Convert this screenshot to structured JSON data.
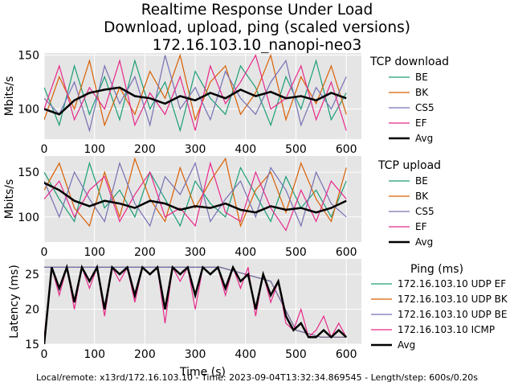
{
  "title_lines": [
    "Realtime Response Under Load",
    "Download, upload, ping (scaled versions)",
    "172.16.103.10_nanopi-neo3"
  ],
  "footer": "Local/remote: x13rd/172.16.103.10 - Time: 2023-09-04T13:32:34.869545 - Length/step: 600s/0.20s",
  "colors": {
    "BE": "#1b9e77",
    "BK": "#d95f02",
    "CS5": "#7570b3",
    "EF": "#e7298a",
    "Avg": "#000000",
    "plot_bg": "#e5e5e5"
  },
  "chart_data": [
    {
      "type": "line",
      "xlabel": "",
      "ylabel": "Mbits/s",
      "xlim": [
        0,
        630
      ],
      "ylim": [
        72,
        152
      ],
      "xticks": [
        0,
        100,
        200,
        300,
        400,
        500,
        600
      ],
      "yticks": [
        100,
        150
      ],
      "legend_title": "TCP download",
      "legend_placement": "outside-right",
      "series": [
        {
          "name": "BE",
          "color": "#1b9e77",
          "x": [
            0,
            30,
            60,
            90,
            120,
            150,
            180,
            210,
            240,
            270,
            300,
            330,
            360,
            390,
            420,
            450,
            480,
            510,
            540,
            570,
            600
          ],
          "y": [
            120,
            85,
            140,
            95,
            130,
            90,
            145,
            100,
            125,
            80,
            135,
            110,
            95,
            140,
            120,
            85,
            130,
            100,
            145,
            90,
            115
          ]
        },
        {
          "name": "BK",
          "color": "#d95f02",
          "x": [
            0,
            30,
            60,
            90,
            120,
            150,
            180,
            210,
            240,
            270,
            300,
            330,
            360,
            390,
            420,
            450,
            480,
            510,
            540,
            570,
            600
          ],
          "y": [
            90,
            130,
            100,
            145,
            85,
            120,
            95,
            135,
            110,
            150,
            90,
            125,
            140,
            95,
            115,
            150,
            90,
            130,
            105,
            140,
            95
          ]
        },
        {
          "name": "CS5",
          "color": "#7570b3",
          "x": [
            0,
            30,
            60,
            90,
            120,
            150,
            180,
            210,
            240,
            270,
            300,
            330,
            360,
            390,
            420,
            450,
            480,
            510,
            540,
            570,
            600
          ],
          "y": [
            110,
            95,
            125,
            80,
            140,
            105,
            130,
            85,
            150,
            100,
            120,
            90,
            135,
            110,
            95,
            125,
            145,
            85,
            120,
            100,
            130
          ]
        },
        {
          "name": "EF",
          "color": "#e7298a",
          "x": [
            0,
            30,
            60,
            90,
            120,
            150,
            180,
            210,
            240,
            270,
            300,
            330,
            360,
            390,
            420,
            450,
            480,
            510,
            540,
            570,
            600
          ],
          "y": [
            100,
            140,
            90,
            120,
            100,
            145,
            85,
            115,
            95,
            130,
            80,
            140,
            105,
            125,
            150,
            100,
            110,
            140,
            90,
            125,
            80
          ]
        },
        {
          "name": "Avg",
          "color": "#000000",
          "x": [
            0,
            30,
            60,
            90,
            120,
            150,
            180,
            210,
            240,
            270,
            300,
            330,
            360,
            390,
            420,
            450,
            480,
            510,
            540,
            570,
            600
          ],
          "y": [
            100,
            95,
            108,
            115,
            118,
            120,
            112,
            110,
            105,
            112,
            108,
            115,
            110,
            118,
            112,
            116,
            110,
            112,
            108,
            115,
            110
          ]
        }
      ]
    },
    {
      "type": "line",
      "xlabel": "",
      "ylabel": "Mbits/s",
      "xlim": [
        0,
        630
      ],
      "ylim": [
        72,
        168
      ],
      "xticks": [
        0,
        100,
        200,
        300,
        400,
        500,
        600
      ],
      "yticks": [
        100,
        150
      ],
      "legend_title": "TCP upload",
      "legend_placement": "outside-right",
      "series": [
        {
          "name": "BE",
          "color": "#1b9e77",
          "x": [
            0,
            30,
            60,
            90,
            120,
            150,
            180,
            210,
            240,
            270,
            300,
            330,
            360,
            390,
            420,
            450,
            480,
            510,
            540,
            570,
            600
          ],
          "y": [
            150,
            120,
            95,
            160,
            110,
            130,
            100,
            150,
            120,
            90,
            140,
            115,
            100,
            155,
            125,
            95,
            145,
            110,
            130,
            100,
            140
          ]
        },
        {
          "name": "BK",
          "color": "#d95f02",
          "x": [
            0,
            30,
            60,
            90,
            120,
            150,
            180,
            210,
            240,
            270,
            300,
            330,
            360,
            390,
            420,
            450,
            480,
            510,
            540,
            570,
            600
          ],
          "y": [
            130,
            160,
            110,
            90,
            150,
            100,
            165,
            120,
            95,
            155,
            110,
            140,
            165,
            90,
            130,
            150,
            105,
            160,
            120,
            95,
            155
          ]
        },
        {
          "name": "CS5",
          "color": "#7570b3",
          "x": [
            0,
            30,
            60,
            90,
            120,
            150,
            180,
            210,
            240,
            270,
            300,
            330,
            360,
            390,
            420,
            450,
            480,
            510,
            540,
            570,
            600
          ],
          "y": [
            140,
            100,
            150,
            120,
            95,
            160,
            115,
            90,
            145,
            125,
            160,
            95,
            120,
            140,
            100,
            155,
            130,
            90,
            150,
            115,
            100
          ]
        },
        {
          "name": "EF",
          "color": "#e7298a",
          "x": [
            0,
            30,
            60,
            90,
            120,
            150,
            180,
            210,
            240,
            270,
            300,
            330,
            360,
            390,
            420,
            450,
            480,
            510,
            540,
            570,
            600
          ],
          "y": [
            120,
            140,
            100,
            130,
            145,
            95,
            125,
            150,
            100,
            110,
            90,
            160,
            105,
            95,
            150,
            110,
            85,
            130,
            95,
            140,
            120
          ]
        },
        {
          "name": "Avg",
          "color": "#000000",
          "x": [
            0,
            30,
            60,
            90,
            120,
            150,
            180,
            210,
            240,
            270,
            300,
            330,
            360,
            390,
            420,
            450,
            480,
            510,
            540,
            570,
            600
          ],
          "y": [
            138,
            130,
            118,
            112,
            118,
            115,
            110,
            118,
            115,
            108,
            112,
            110,
            115,
            108,
            105,
            112,
            108,
            110,
            105,
            110,
            118
          ]
        }
      ]
    },
    {
      "type": "line",
      "xlabel": "Time (s)",
      "ylabel": "Latency (ms)",
      "xlim": [
        0,
        630
      ],
      "ylim": [
        15,
        27.2
      ],
      "xticks": [
        0,
        100,
        200,
        300,
        400,
        500,
        600
      ],
      "yticks": [
        15,
        20,
        25
      ],
      "legend_title": "Ping (ms)",
      "legend_placement": "outside-right",
      "series": [
        {
          "name": "172.16.103.10 UDP EF",
          "color": "#1b9e77",
          "x": [
            0,
            50,
            100,
            150,
            200,
            250,
            300,
            350,
            400,
            450,
            500,
            550,
            600
          ],
          "y": [
            26,
            26,
            26,
            26,
            26,
            26,
            26,
            26,
            25,
            24,
            17,
            16,
            16
          ]
        },
        {
          "name": "172.16.103.10 UDP BK",
          "color": "#d95f02",
          "x": [
            0,
            50,
            100,
            150,
            200,
            250,
            300,
            350,
            400,
            450,
            500,
            550,
            600
          ],
          "y": [
            26,
            26,
            26,
            26,
            26,
            26,
            26,
            26,
            25,
            24,
            17,
            16,
            16
          ]
        },
        {
          "name": "172.16.103.10 UDP BE",
          "color": "#7570b3",
          "x": [
            0,
            50,
            100,
            150,
            200,
            250,
            300,
            350,
            400,
            450,
            500,
            550,
            600
          ],
          "y": [
            26,
            26,
            26,
            26,
            26,
            26,
            26,
            26,
            25,
            24,
            17,
            16,
            16
          ]
        },
        {
          "name": "172.16.103.10 ICMP",
          "color": "#e7298a",
          "x": [
            0,
            15,
            30,
            45,
            60,
            75,
            90,
            105,
            120,
            135,
            150,
            165,
            180,
            195,
            210,
            225,
            240,
            255,
            270,
            285,
            300,
            315,
            330,
            345,
            360,
            375,
            390,
            405,
            420,
            435,
            450,
            465,
            480,
            495,
            510,
            525,
            540,
            555,
            570,
            585,
            600
          ],
          "y": [
            16,
            26,
            22,
            26,
            20,
            26,
            23,
            26,
            19,
            26,
            24,
            26,
            21,
            26,
            25,
            26,
            18,
            26,
            24,
            26,
            20,
            26,
            25,
            26,
            22,
            26,
            23,
            26,
            19,
            25,
            21,
            24,
            18,
            17,
            20,
            16,
            17,
            19,
            16,
            18,
            16
          ]
        },
        {
          "name": "Avg",
          "color": "#000000",
          "x": [
            0,
            15,
            30,
            45,
            60,
            75,
            90,
            105,
            120,
            135,
            150,
            165,
            180,
            195,
            210,
            225,
            240,
            255,
            270,
            285,
            300,
            315,
            330,
            345,
            360,
            375,
            390,
            405,
            420,
            435,
            450,
            465,
            480,
            495,
            510,
            525,
            540,
            555,
            570,
            585,
            600
          ],
          "y": [
            15,
            26,
            23,
            26,
            21,
            26,
            24,
            26,
            20,
            26,
            25,
            26,
            22,
            26,
            25,
            26,
            20,
            26,
            25,
            26,
            22,
            26,
            25,
            26,
            23,
            26,
            24,
            25,
            20,
            25,
            22,
            24,
            19,
            17,
            18,
            16,
            16,
            17,
            16,
            17,
            16
          ]
        }
      ]
    }
  ]
}
